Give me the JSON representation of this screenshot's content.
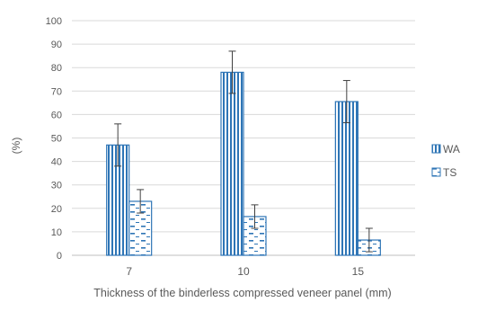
{
  "chart_data": {
    "type": "bar",
    "categories": [
      "7",
      "10",
      "15"
    ],
    "series": [
      {
        "name": "WA",
        "values": [
          47,
          78,
          65.5
        ],
        "errors": [
          9,
          9,
          9
        ],
        "color": "#2e75b6",
        "pattern": "vertical-stripes"
      },
      {
        "name": "TS",
        "values": [
          23,
          16.5,
          6.5
        ],
        "errors": [
          5,
          5,
          5
        ],
        "color": "#2e75b6",
        "pattern": "dashes"
      }
    ],
    "xlabel": "Thickness of the binderless compressed veneer panel (mm)",
    "ylabel": "(%)",
    "ylim": [
      0,
      100
    ],
    "yticks": [
      0,
      10,
      20,
      30,
      40,
      50,
      60,
      70,
      80,
      90,
      100
    ],
    "grid": true,
    "legend": "right"
  }
}
